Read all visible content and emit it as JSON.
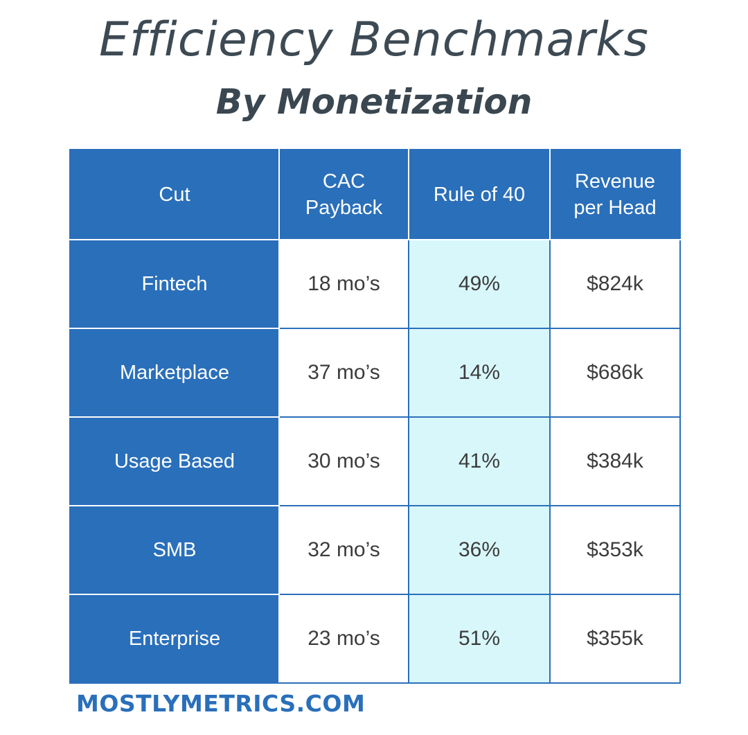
{
  "title": "Efficiency Benchmarks",
  "subtitle": "By Monetization",
  "footer": "MOSTLYMETRICS.COM",
  "colors": {
    "header_bg": "#2a6fba",
    "highlight_column": "#d8f7fb",
    "title_text": "#3d4a54"
  },
  "chart_data": {
    "type": "table",
    "title": "Efficiency Benchmarks",
    "subtitle": "By Monetization",
    "columns": [
      "Cut",
      "CAC\nPayback",
      "Rule of 40",
      "Revenue\nper Head"
    ],
    "highlighted_column": "Rule of 40",
    "rows": [
      {
        "cut": "Fintech",
        "cac_payback": "18 mo’s",
        "rule_of_40": "49%",
        "revenue_per_head": "$824k"
      },
      {
        "cut": "Marketplace",
        "cac_payback": "37 mo’s",
        "rule_of_40": "14%",
        "revenue_per_head": "$686k"
      },
      {
        "cut": "Usage Based",
        "cac_payback": "30 mo’s",
        "rule_of_40": "41%",
        "revenue_per_head": "$384k"
      },
      {
        "cut": "SMB",
        "cac_payback": "32 mo’s",
        "rule_of_40": "36%",
        "revenue_per_head": "$353k"
      },
      {
        "cut": "Enterprise",
        "cac_payback": "23 mo’s",
        "rule_of_40": "51%",
        "revenue_per_head": "$355k"
      }
    ]
  }
}
